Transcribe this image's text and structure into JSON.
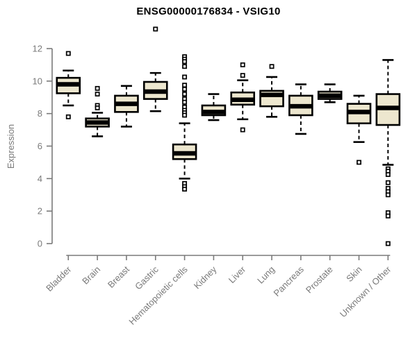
{
  "chart_data": {
    "type": "boxplot",
    "title": "ENSG00000176834 - VSIG10",
    "xlabel": "",
    "ylabel": "Expression",
    "ylim": [
      0,
      12
    ],
    "yticks": [
      0,
      2,
      4,
      6,
      8,
      10,
      12
    ],
    "grid": false,
    "legend": null,
    "categories": [
      "Bladder",
      "Brain",
      "Breast",
      "Gastric",
      "Hematopoietic cells",
      "Kidney",
      "Liver",
      "Lung",
      "Pancreas",
      "Prostate",
      "Skin",
      "Unknown / Other"
    ],
    "series": [
      {
        "name": "Bladder",
        "whisker_low": 8.5,
        "q1": 9.25,
        "median": 9.8,
        "q3": 10.2,
        "whisker_high": 10.65,
        "outliers": [
          11.7,
          7.8
        ]
      },
      {
        "name": "Brain",
        "whisker_low": 6.6,
        "q1": 7.2,
        "median": 7.45,
        "q3": 7.7,
        "whisker_high": 8.05,
        "outliers": [
          9.55,
          9.2,
          8.5,
          8.35
        ]
      },
      {
        "name": "Breast",
        "whisker_low": 7.2,
        "q1": 8.1,
        "median": 8.6,
        "q3": 9.1,
        "whisker_high": 9.7,
        "outliers": []
      },
      {
        "name": "Gastric",
        "whisker_low": 8.15,
        "q1": 8.9,
        "median": 9.35,
        "q3": 9.95,
        "whisker_high": 10.5,
        "outliers": [
          13.2
        ]
      },
      {
        "name": "Hematopoietic cells",
        "whisker_low": 4.0,
        "q1": 5.2,
        "median": 5.55,
        "q3": 6.1,
        "whisker_high": 7.4,
        "outliers": [
          11.5,
          11.35,
          11.2,
          10.9,
          10.25,
          9.75,
          9.5,
          9.2,
          8.9,
          8.7,
          8.4,
          8.2,
          8.05,
          7.9,
          3.7,
          3.5,
          3.35
        ]
      },
      {
        "name": "Kidney",
        "whisker_low": 7.6,
        "q1": 7.9,
        "median": 8.1,
        "q3": 8.5,
        "whisker_high": 9.2,
        "outliers": []
      },
      {
        "name": "Liver",
        "whisker_low": 7.65,
        "q1": 8.55,
        "median": 8.85,
        "q3": 9.3,
        "whisker_high": 10.05,
        "outliers": [
          11.0,
          10.35,
          7.0
        ]
      },
      {
        "name": "Lung",
        "whisker_low": 7.8,
        "q1": 8.45,
        "median": 9.15,
        "q3": 9.4,
        "whisker_high": 10.25,
        "outliers": [
          10.9
        ]
      },
      {
        "name": "Pancreas",
        "whisker_low": 6.75,
        "q1": 7.9,
        "median": 8.45,
        "q3": 9.1,
        "whisker_high": 9.8,
        "outliers": []
      },
      {
        "name": "Prostate",
        "whisker_low": 8.7,
        "q1": 8.9,
        "median": 9.1,
        "q3": 9.35,
        "whisker_high": 9.8,
        "outliers": []
      },
      {
        "name": "Skin",
        "whisker_low": 6.25,
        "q1": 7.4,
        "median": 8.1,
        "q3": 8.6,
        "whisker_high": 9.1,
        "outliers": [
          5.0
        ]
      },
      {
        "name": "Unknown / Other",
        "whisker_low": 4.85,
        "q1": 7.3,
        "median": 8.35,
        "q3": 9.2,
        "whisker_high": 11.3,
        "outliers": [
          4.6,
          4.45,
          4.25,
          3.75,
          3.4,
          3.2,
          3.0,
          1.9,
          1.7,
          0.0
        ]
      }
    ],
    "colors": {
      "box_fill": "#ede7cf",
      "box_border": "#000000",
      "median": "#000000",
      "axis": "#7a7a7a",
      "text": "#7a7a7a",
      "title": "#000000",
      "outlier_fill": "#ffffff"
    }
  }
}
